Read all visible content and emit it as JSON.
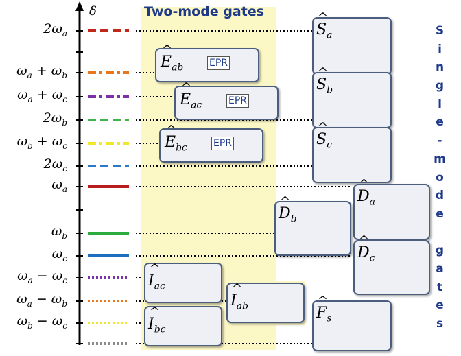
{
  "title": "Two-mode gates",
  "side_title_chars": [
    "S",
    "i",
    "n",
    "g",
    "l",
    "e",
    "-",
    "m",
    "o",
    "d",
    "e",
    "",
    "g",
    "a",
    "t",
    "e",
    "s"
  ],
  "axis_label": "δ",
  "levels": [
    {
      "label": "2ω_a",
      "color": "#c0281c",
      "style": "dash"
    },
    {
      "label": "ω_a + ω_b",
      "color": "#e8771b",
      "style": "dashdot"
    },
    {
      "label": "ω_a + ω_c",
      "color": "#7b2fa8",
      "style": "dashdot"
    },
    {
      "label": "2ω_b",
      "color": "#3fb34a",
      "style": "dash"
    },
    {
      "label": "ω_b + ω_c",
      "color": "#f0e62a",
      "style": "dashdot"
    },
    {
      "label": "2ω_c",
      "color": "#2a78c8",
      "style": "dash"
    },
    {
      "label": "ω_a",
      "color": "#b81c1c",
      "style": "solid"
    },
    {
      "label": "ω_b",
      "color": "#2aab3c",
      "style": "solid"
    },
    {
      "label": "ω_c",
      "color": "#1f6fc0",
      "style": "solid"
    },
    {
      "label": "ω_a − ω_c",
      "color": "#7b2fa8",
      "style": "dot"
    },
    {
      "label": "ω_a − ω_b",
      "color": "#e8771b",
      "style": "dot"
    },
    {
      "label": "ω_b − ω_c",
      "color": "#f0e62a",
      "style": "dot"
    },
    {
      "label": "",
      "color": "#8a8a8a",
      "style": "dot"
    }
  ],
  "two_mode_gates": [
    {
      "op": "E",
      "sub": "ab",
      "tag": "EPR"
    },
    {
      "op": "E",
      "sub": "ac",
      "tag": "EPR"
    },
    {
      "op": "E",
      "sub": "bc",
      "tag": "EPR"
    },
    {
      "op": "I",
      "sub": "ac"
    },
    {
      "op": "I",
      "sub": "ab"
    },
    {
      "op": "I",
      "sub": "bc"
    }
  ],
  "single_mode_gates": [
    {
      "op": "S",
      "sub": "a",
      "color": "#c0353a"
    },
    {
      "op": "S",
      "sub": "b",
      "color": "#86b040"
    },
    {
      "op": "S",
      "sub": "c",
      "color": "#3f74b8"
    },
    {
      "op": "D",
      "sub": "a",
      "color": "#c0353a"
    },
    {
      "op": "D",
      "sub": "b",
      "color": "#86b040"
    },
    {
      "op": "D",
      "sub": "c",
      "color": "#3f74b8"
    },
    {
      "op": "F",
      "sub": "s",
      "color": "#1bb0c0"
    }
  ]
}
